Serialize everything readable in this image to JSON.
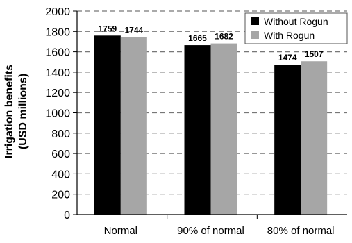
{
  "chart_data": {
    "type": "bar",
    "categories": [
      "Normal",
      "90% of normal",
      "80% of normal"
    ],
    "series": [
      {
        "name": "Without Rogun",
        "values": [
          1759,
          1665,
          1474
        ],
        "color": "#000000"
      },
      {
        "name": "With Rogun",
        "values": [
          1744,
          1682,
          1507
        ],
        "color": "#a6a6a6"
      }
    ],
    "ylabel_lines": [
      "Irrigation benefits",
      "(USD millions)"
    ],
    "yticks": [
      0,
      200,
      400,
      600,
      800,
      1000,
      1200,
      1400,
      1600,
      1800,
      2000
    ],
    "ylim": [
      0,
      2000
    ],
    "grid": "dashed horizontal",
    "legend_position": "top-right",
    "data_labels": true
  }
}
